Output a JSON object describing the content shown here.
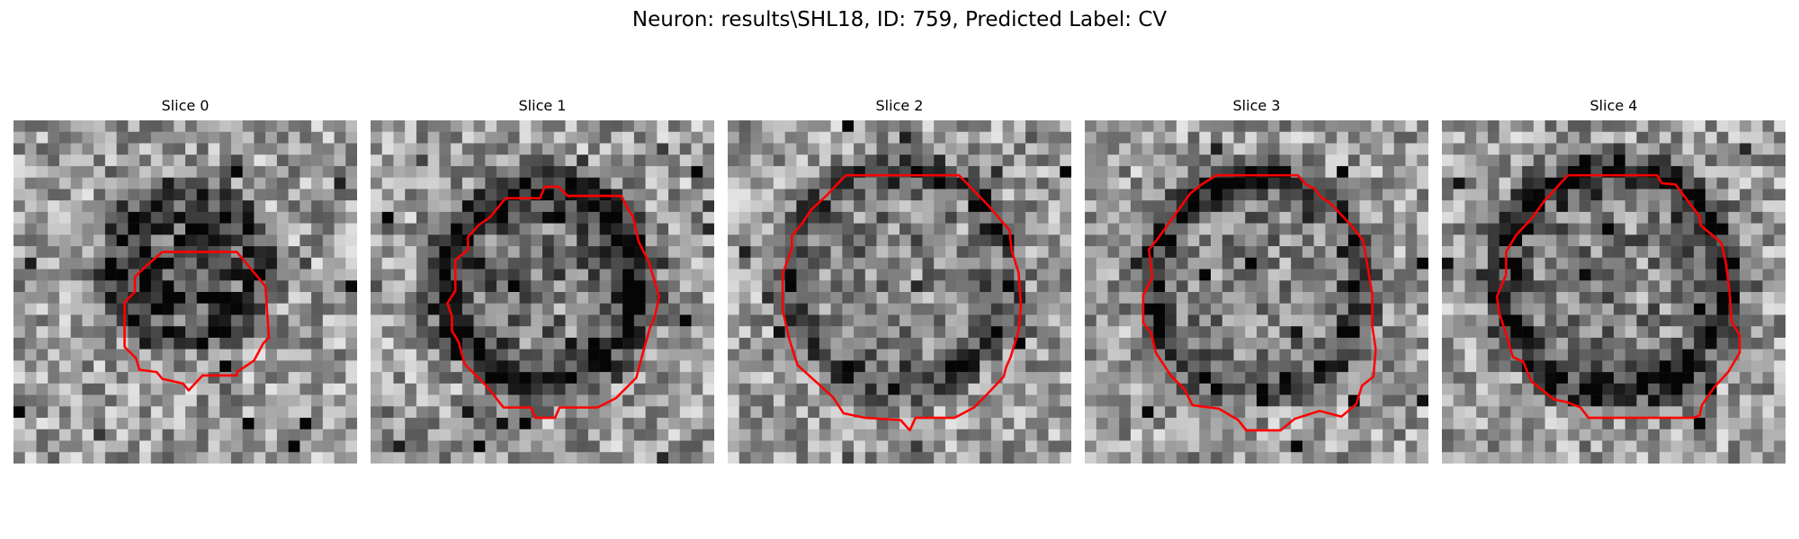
{
  "figure": {
    "title": "Neuron: results\\SHL18, ID: 759, Predicted Label: CV"
  },
  "panels": [
    {
      "title": "Slice 0",
      "contour_color": "#ff0000",
      "grid_size": 30
    },
    {
      "title": "Slice 1",
      "contour_color": "#ff0000",
      "grid_size": 30
    },
    {
      "title": "Slice 2",
      "contour_color": "#ff0000",
      "grid_size": 30
    },
    {
      "title": "Slice 3",
      "contour_color": "#ff0000",
      "grid_size": 30
    },
    {
      "title": "Slice 4",
      "contour_color": "#ff0000",
      "grid_size": 30
    }
  ]
}
